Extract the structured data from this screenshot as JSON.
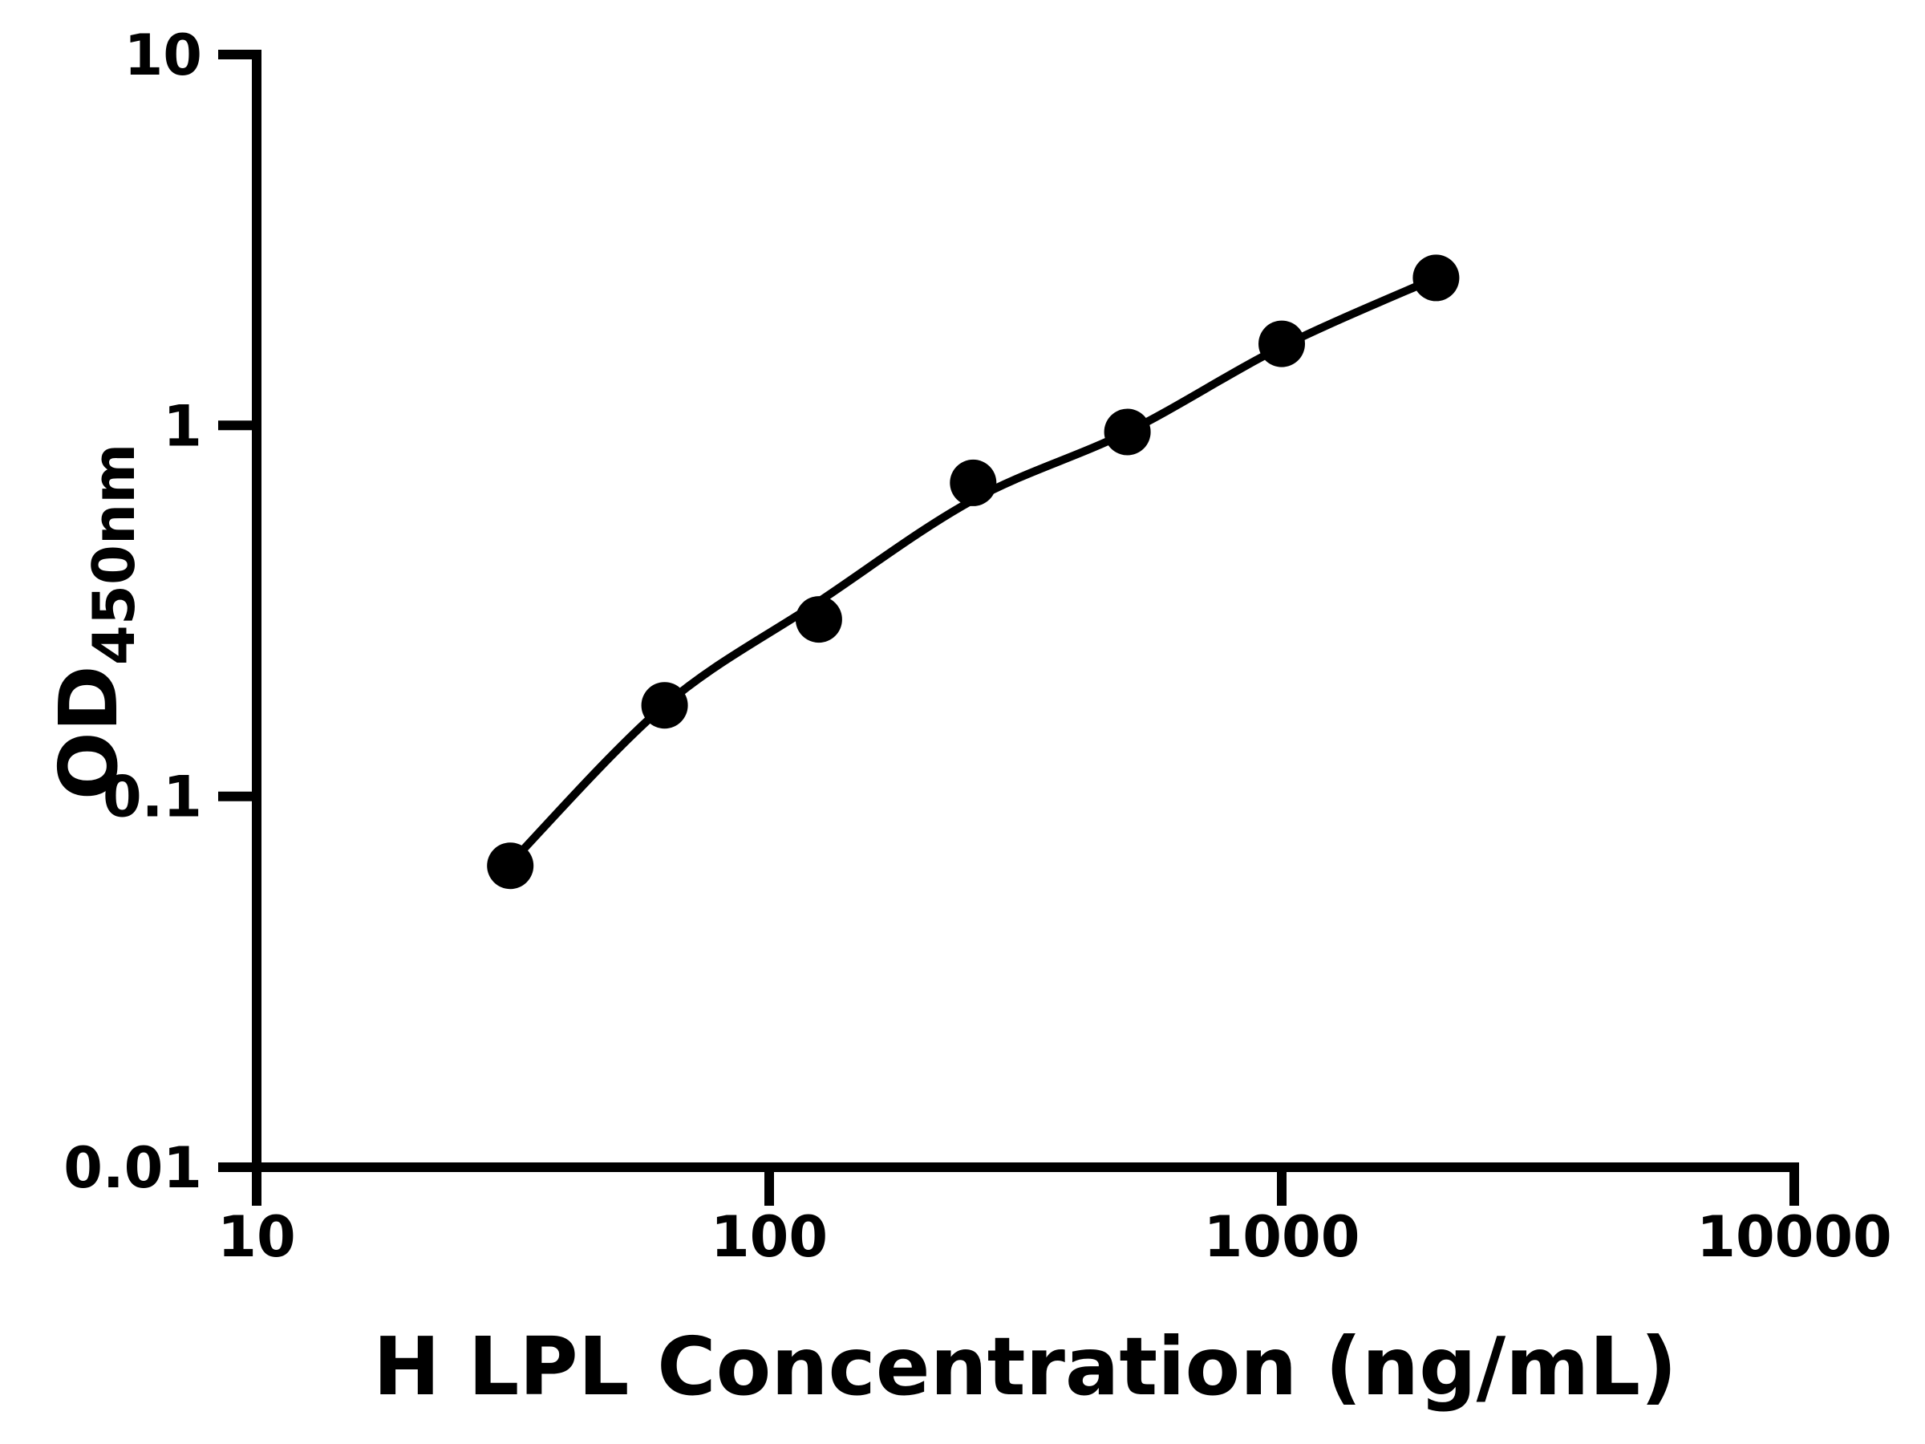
{
  "figure": {
    "background_color": "#ffffff",
    "foreground_color": "#000000"
  },
  "chart_data": {
    "type": "scatter",
    "title": "",
    "xlabel": "H LPL Concentration (ng/mL)",
    "ylabel_base": "OD",
    "ylabel_subscript": "450nm",
    "x_scale": "log",
    "y_scale": "log",
    "xlim": [
      10,
      10000
    ],
    "ylim": [
      0.01,
      10
    ],
    "x_tick_values": [
      10,
      100,
      1000,
      10000
    ],
    "x_tick_labels": [
      "10",
      "100",
      "1000",
      "10000"
    ],
    "y_tick_values": [
      0.01,
      0.1,
      1,
      10
    ],
    "y_tick_labels": [
      "0.01",
      "0.1",
      "1",
      "10"
    ],
    "grid": false,
    "legend_position": "none",
    "series": [
      {
        "name": "standard-points",
        "type": "scatter",
        "marker": "filled-circle",
        "color": "#000000",
        "x": [
          31.25,
          62.5,
          125,
          250,
          500,
          1000,
          2000
        ],
        "y": [
          0.065,
          0.176,
          0.3,
          0.7,
          0.96,
          1.66,
          2.5
        ]
      },
      {
        "name": "fitted-curve",
        "type": "line",
        "color": "#000000",
        "x": [
          31.25,
          62.5,
          125,
          250,
          500,
          1000,
          2000
        ],
        "y": [
          0.066,
          0.176,
          0.335,
          0.63,
          0.96,
          1.63,
          2.5
        ]
      }
    ]
  }
}
